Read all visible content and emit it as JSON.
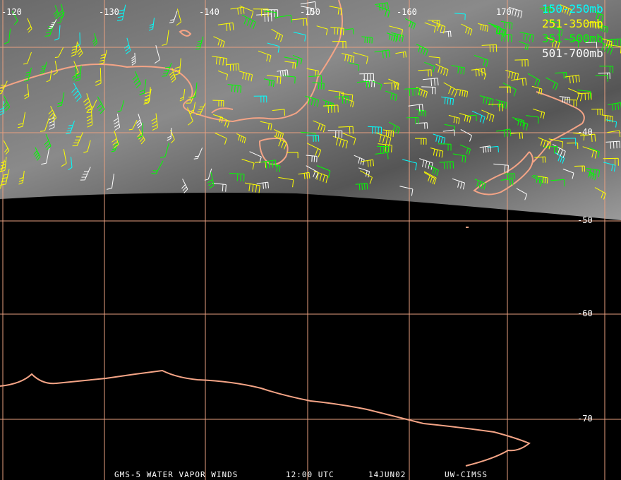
{
  "map": {
    "title": "GMS-5 WATER VAPOR WINDS",
    "time": "12:00 UTC",
    "date": "14JUN02",
    "source": "UW-CIMSS",
    "longitude_labels": [
      "-120",
      "-130",
      "-140",
      "-150",
      "-160",
      "170"
    ],
    "latitude_labels": [
      "-40",
      "-50",
      "-60",
      "-70"
    ],
    "legend": [
      {
        "label": "150-250mb",
        "color": "#00ffff"
      },
      {
        "label": "251-350mb",
        "color": "#ffff00"
      },
      {
        "label": "351-500mb",
        "color": "#00ff00"
      },
      {
        "label": "501-700mb",
        "color": "#ffffff"
      }
    ]
  }
}
